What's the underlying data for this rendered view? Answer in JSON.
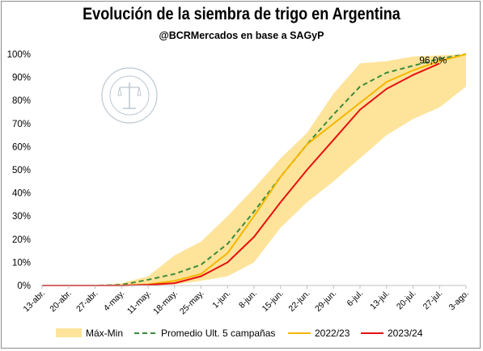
{
  "chart_data": {
    "type": "line",
    "title": "Evolución de la siembra de trigo en Argentina",
    "subtitle": "@BCRMercados en base a SAGyP",
    "categories": [
      "13-abr.",
      "20-abr.",
      "27-abr.",
      "4-may.",
      "11-may.",
      "18-may.",
      "25-may.",
      "1-jun.",
      "8-jun.",
      "15-jun.",
      "22-jun.",
      "29-jun.",
      "6-jul.",
      "13-jul.",
      "20-jul.",
      "27-jul.",
      "3-ago."
    ],
    "y_ticks": [
      "0%",
      "10%",
      "20%",
      "30%",
      "40%",
      "50%",
      "60%",
      "70%",
      "80%",
      "90%",
      "100%"
    ],
    "ylim": [
      0,
      100
    ],
    "band": {
      "name": "Máx-Min",
      "color": "#fde49a",
      "max": [
        0,
        0,
        0,
        1,
        4,
        13,
        19,
        30,
        42,
        55,
        66,
        83,
        96,
        97,
        99,
        99.5,
        100
      ],
      "min": [
        0,
        0,
        0,
        0,
        0,
        0.5,
        2,
        4,
        10,
        25,
        36,
        45,
        55,
        65,
        72,
        77,
        86
      ]
    },
    "series": [
      {
        "name": "Promedio Ult. 5 campañas",
        "color": "#3a8a3a",
        "dash": true,
        "values": [
          0,
          0,
          0,
          0.3,
          2.5,
          5,
          9,
          18,
          32,
          47,
          61,
          74,
          86,
          92,
          95,
          98,
          100
        ]
      },
      {
        "name": "2022/23",
        "color": "#f5b700",
        "dash": false,
        "values": [
          0,
          0,
          0,
          0,
          0.5,
          2,
          5,
          14,
          30,
          47,
          61,
          70,
          79,
          88,
          93,
          97,
          100
        ]
      },
      {
        "name": "2023/24",
        "color": "#e81010",
        "dash": false,
        "values": [
          0,
          0,
          0,
          0,
          0.3,
          1,
          4,
          10,
          21,
          36,
          50,
          63,
          76,
          85,
          91,
          96,
          null
        ]
      }
    ],
    "annotations": [
      {
        "text": "96,0%",
        "category": "27-jul.",
        "value": 96
      }
    ]
  }
}
